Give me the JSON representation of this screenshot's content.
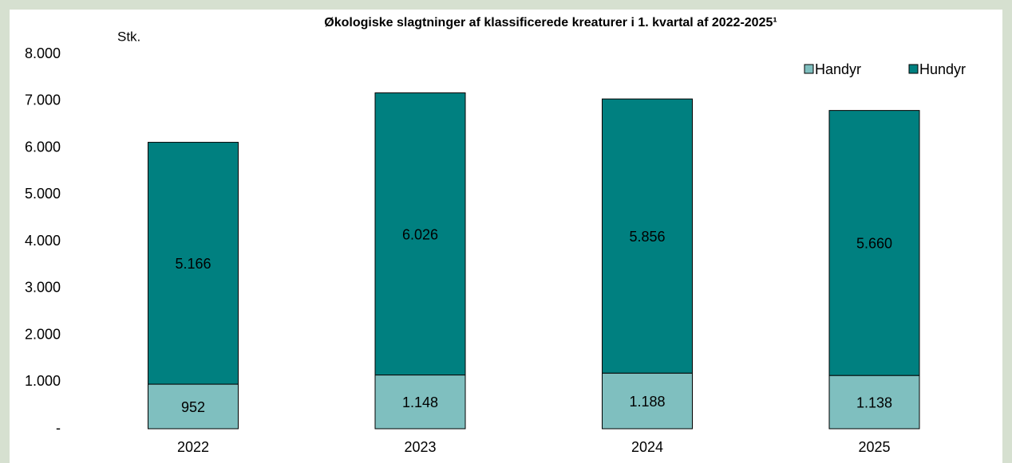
{
  "chart_data": {
    "type": "stacked_bar",
    "title": "Økologiske slagtninger af klassificerede kreaturer i 1. kvartal af 2022-2025¹",
    "y_label": "Stk.",
    "categories": [
      "2022",
      "2023",
      "2024",
      "2025"
    ],
    "series": [
      {
        "name": "Handyr",
        "color": "#7fbfbf",
        "values": [
          952,
          1148,
          1188,
          1138
        ],
        "value_labels": [
          "952",
          "1.148",
          "1.188",
          "1.138"
        ]
      },
      {
        "name": "Hundyr",
        "color": "#008080",
        "values": [
          5166,
          6026,
          5856,
          5660
        ],
        "value_labels": [
          "5.166",
          "6.026",
          "5.856",
          "5.660"
        ]
      }
    ],
    "ylim": [
      0,
      8000
    ],
    "yticks": [
      {
        "value": 0,
        "label": "-"
      },
      {
        "value": 1000,
        "label": "1.000"
      },
      {
        "value": 2000,
        "label": "2.000"
      },
      {
        "value": 3000,
        "label": "3.000"
      },
      {
        "value": 4000,
        "label": "4.000"
      },
      {
        "value": 5000,
        "label": "5.000"
      },
      {
        "value": 6000,
        "label": "6.000"
      },
      {
        "value": 7000,
        "label": "7.000"
      },
      {
        "value": 8000,
        "label": "8.000"
      }
    ],
    "grid": false,
    "legend": "top-right"
  }
}
